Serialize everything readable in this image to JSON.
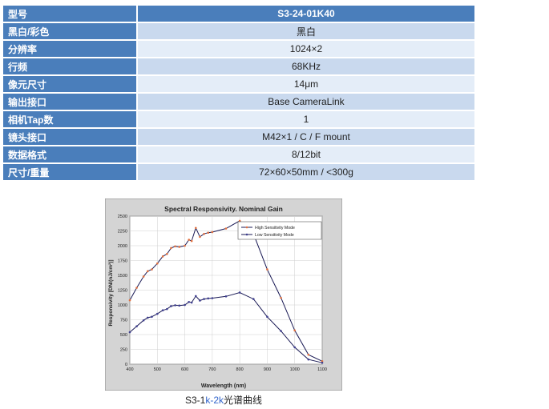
{
  "spec_table": {
    "header": {
      "label": "型号",
      "value": "S3-24-01K40"
    },
    "rows": [
      {
        "label": "黑白/彩色",
        "value": "黑白"
      },
      {
        "label": "分辨率",
        "value": "1024×2"
      },
      {
        "label": "行频",
        "value": "68KHz"
      },
      {
        "label": "像元尺寸",
        "value": "14μm"
      },
      {
        "label": "输出接口",
        "value": "Base CameraLink"
      },
      {
        "label": "相机Tap数",
        "value": "1"
      },
      {
        "label": "镜头接口",
        "value": "M42×1 / C / F mount"
      },
      {
        "label": "数据格式",
        "value": "8/12bit"
      },
      {
        "label": "尺寸/重量",
        "value": "72×60×50mm / <300g"
      }
    ]
  },
  "caption": {
    "part1": "S3-1",
    "part2": "k-2k",
    "part3": "光谱曲线"
  },
  "chart_data": {
    "type": "line",
    "title": "Spectral Responsivity. Nominal Gain",
    "xlabel": "Wavelength (nm)",
    "ylabel": "Responsivity [DN/(nJ/cm²)]",
    "xlim": [
      400,
      1100
    ],
    "ylim": [
      0,
      2500
    ],
    "xticks": [
      400,
      500,
      600,
      700,
      800,
      900,
      1000,
      1100
    ],
    "yticks": [
      0,
      250,
      500,
      750,
      1000,
      1250,
      1500,
      1750,
      2000,
      2250,
      2500
    ],
    "grid": true,
    "legend_position": "top-right",
    "colors": {
      "frame": "#d4d4d4",
      "plot_bg": "#ffffff",
      "line": "#1a1a55",
      "marker_high": "#e07040",
      "marker_low": "#404090"
    },
    "series": [
      {
        "name": "High Sensitivity Mode",
        "x": [
          400,
          425,
          450,
          465,
          480,
          500,
          520,
          535,
          550,
          565,
          580,
          600,
          615,
          625,
          640,
          655,
          670,
          685,
          700,
          750,
          800,
          850,
          900,
          950,
          1000,
          1050,
          1100
        ],
        "y": [
          1080,
          1290,
          1480,
          1570,
          1600,
          1700,
          1820,
          1860,
          1960,
          1990,
          1980,
          2000,
          2100,
          2080,
          2300,
          2150,
          2200,
          2220,
          2230,
          2290,
          2420,
          2200,
          1600,
          1120,
          570,
          160,
          50
        ]
      },
      {
        "name": "Low Sensitivity Mode",
        "x": [
          400,
          425,
          450,
          465,
          480,
          500,
          520,
          535,
          550,
          565,
          580,
          600,
          615,
          625,
          640,
          655,
          670,
          685,
          700,
          750,
          800,
          850,
          900,
          950,
          1000,
          1050,
          1100
        ],
        "y": [
          540,
          640,
          740,
          785,
          800,
          850,
          910,
          930,
          980,
          995,
          990,
          1000,
          1050,
          1040,
          1150,
          1075,
          1100,
          1110,
          1115,
          1145,
          1210,
          1100,
          800,
          560,
          285,
          80,
          25
        ]
      }
    ]
  }
}
